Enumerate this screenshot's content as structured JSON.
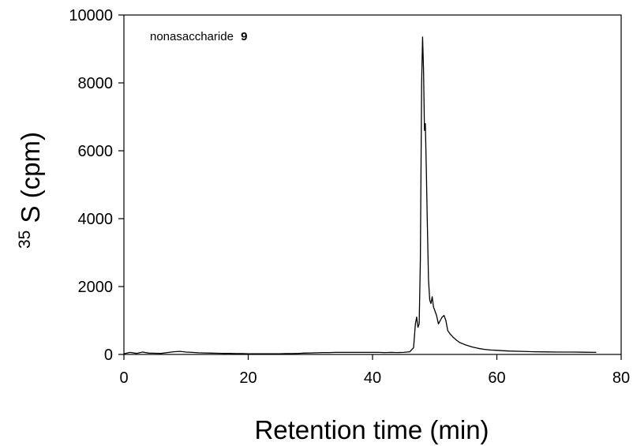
{
  "chart_data": {
    "type": "line",
    "title": "",
    "annotation": {
      "text": "nonasaccharide",
      "bold_text": "9"
    },
    "xlabel": "Retention time (min)",
    "ylabel": {
      "superscript": "35",
      "text": "S (cpm)"
    },
    "xlim": [
      0,
      80
    ],
    "ylim": [
      0,
      10000
    ],
    "x_ticks": [
      0,
      20,
      40,
      60,
      80
    ],
    "x_tick_labels": [
      "0",
      "20",
      "40",
      "60",
      "80"
    ],
    "y_ticks": [
      0,
      2000,
      4000,
      6000,
      8000,
      10000
    ],
    "y_tick_labels": [
      "0",
      "2000",
      "4000",
      "6000",
      "8000",
      "10000"
    ],
    "grid": false,
    "legend": "none",
    "series": [
      {
        "color": "#000000",
        "points": [
          [
            0,
            20
          ],
          [
            1,
            60
          ],
          [
            2,
            30
          ],
          [
            3,
            70
          ],
          [
            4,
            40
          ],
          [
            5,
            35
          ],
          [
            6,
            30
          ],
          [
            7,
            55
          ],
          [
            8,
            80
          ],
          [
            9,
            90
          ],
          [
            10,
            70
          ],
          [
            11,
            60
          ],
          [
            12,
            50
          ],
          [
            13,
            45
          ],
          [
            14,
            40
          ],
          [
            15,
            35
          ],
          [
            16,
            30
          ],
          [
            17,
            30
          ],
          [
            18,
            25
          ],
          [
            19,
            25
          ],
          [
            20,
            20
          ],
          [
            21,
            20
          ],
          [
            22,
            20
          ],
          [
            23,
            20
          ],
          [
            24,
            20
          ],
          [
            25,
            20
          ],
          [
            26,
            25
          ],
          [
            27,
            25
          ],
          [
            28,
            30
          ],
          [
            29,
            40
          ],
          [
            30,
            45
          ],
          [
            31,
            50
          ],
          [
            32,
            55
          ],
          [
            33,
            55
          ],
          [
            34,
            60
          ],
          [
            35,
            60
          ],
          [
            36,
            60
          ],
          [
            37,
            60
          ],
          [
            38,
            60
          ],
          [
            39,
            60
          ],
          [
            40,
            60
          ],
          [
            41,
            60
          ],
          [
            42,
            55
          ],
          [
            43,
            60
          ],
          [
            44,
            55
          ],
          [
            45,
            60
          ],
          [
            46,
            80
          ],
          [
            46.6,
            200
          ],
          [
            46.9,
            900
          ],
          [
            47.1,
            1100
          ],
          [
            47.3,
            800
          ],
          [
            47.5,
            900
          ],
          [
            47.7,
            2800
          ],
          [
            47.9,
            8000
          ],
          [
            48.05,
            9350
          ],
          [
            48.2,
            8400
          ],
          [
            48.35,
            6600
          ],
          [
            48.5,
            6800
          ],
          [
            48.65,
            5500
          ],
          [
            48.8,
            4000
          ],
          [
            49.0,
            2200
          ],
          [
            49.2,
            1600
          ],
          [
            49.4,
            1500
          ],
          [
            49.6,
            1700
          ],
          [
            49.8,
            1400
          ],
          [
            50.0,
            1300
          ],
          [
            50.3,
            1150
          ],
          [
            50.6,
            900
          ],
          [
            50.9,
            1000
          ],
          [
            51.2,
            1100
          ],
          [
            51.5,
            1150
          ],
          [
            51.8,
            1000
          ],
          [
            52.1,
            700
          ],
          [
            52.5,
            600
          ],
          [
            53,
            500
          ],
          [
            53.5,
            420
          ],
          [
            54,
            350
          ],
          [
            55,
            280
          ],
          [
            56,
            220
          ],
          [
            57,
            180
          ],
          [
            58,
            150
          ],
          [
            59,
            130
          ],
          [
            60,
            120
          ],
          [
            61,
            110
          ],
          [
            62,
            100
          ],
          [
            64,
            90
          ],
          [
            66,
            80
          ],
          [
            68,
            75
          ],
          [
            70,
            70
          ],
          [
            72,
            70
          ],
          [
            74,
            65
          ],
          [
            76,
            60
          ]
        ]
      }
    ]
  }
}
